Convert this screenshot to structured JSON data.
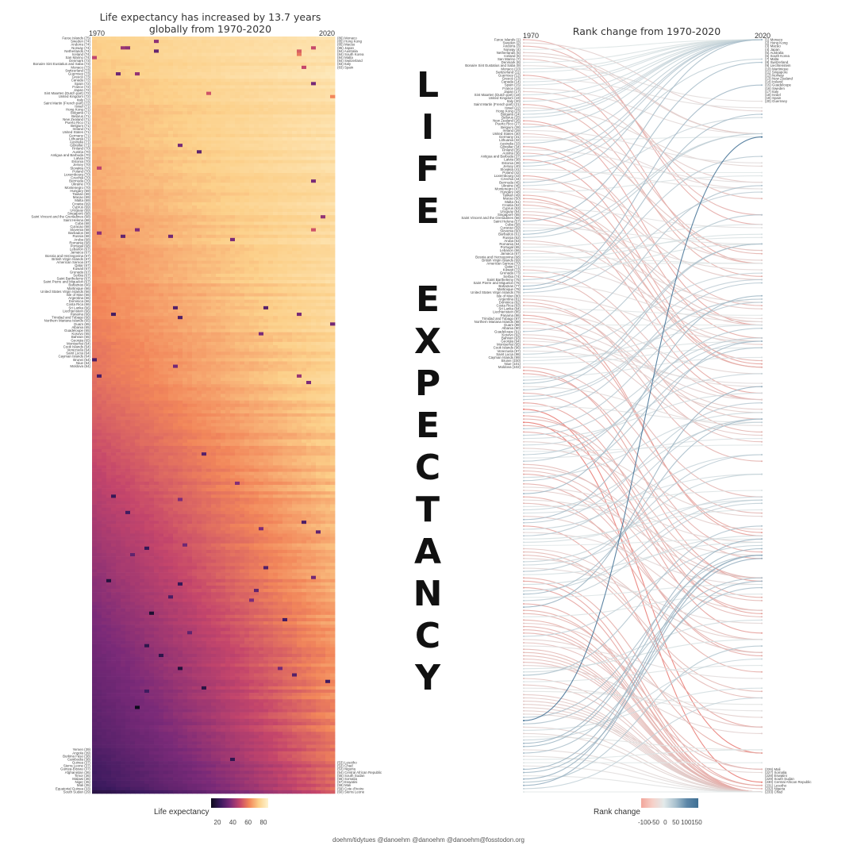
{
  "left_panel": {
    "title_line1": "Life expectancy has increased by 13.7 years",
    "title_line2": "globally from 1970-2020",
    "year_start": "1970",
    "year_end": "2020",
    "legend_title": "Life expectancy",
    "legend_ticks": [
      "20",
      "40",
      "60",
      "80"
    ]
  },
  "right_panel": {
    "title": "Rank change from 1970-2020",
    "year_start": "1970",
    "year_end": "2020",
    "legend_title": "Rank change",
    "legend_ticks": [
      "-100",
      "-50",
      "0",
      "50",
      "100",
      "150"
    ]
  },
  "center_word": {
    "word1": [
      "L",
      "I",
      "F",
      "E"
    ],
    "word2": [
      "E",
      "X",
      "P",
      "E",
      "C",
      "T",
      "A",
      "N",
      "C",
      "Y"
    ]
  },
  "footer": "doehm/tidytues  @danoehm  @danoehm  @danoehm@fosstodon.org",
  "colors": {
    "heat_low": "#1a0f2e",
    "heat_mid": "#c4456b",
    "heat_high": "#fde7b0",
    "rank_down": "#e8766e",
    "rank_neutral": "#dfe6e6",
    "rank_up": "#3f6f93"
  },
  "chart_data": [
    {
      "type": "heatmap",
      "title": "Life expectancy has increased by 13.7 years globally from 1970-2020",
      "x_range": [
        1970,
        2020
      ],
      "legend_title": "Life expectancy",
      "legend_range": [
        20,
        85
      ],
      "rows_1970": [
        {
          "name": "Faroe Islands",
          "value": 75
        },
        {
          "name": "Sweden",
          "value": 74
        },
        {
          "name": "Andorra",
          "value": 74
        },
        {
          "name": "Norway",
          "value": 74
        },
        {
          "name": "Netherlands",
          "value": 74
        },
        {
          "name": "Iceland",
          "value": 74
        },
        {
          "name": "San Marino",
          "value": 74
        },
        {
          "name": "Denmark",
          "value": 73
        },
        {
          "name": "Bonaire Sint Eustatius and Saba",
          "value": 73
        },
        {
          "name": "Monaco",
          "value": 73
        },
        {
          "name": "Switzerland",
          "value": 73
        },
        {
          "name": "Guernsey",
          "value": 73
        },
        {
          "name": "Greece",
          "value": 73
        },
        {
          "name": "Canada",
          "value": 72
        },
        {
          "name": "Spain",
          "value": 72
        },
        {
          "name": "France",
          "value": 72
        },
        {
          "name": "Japan",
          "value": 72
        },
        {
          "name": "Sint Maarten (Dutch part)",
          "value": 72
        },
        {
          "name": "United Kingdom",
          "value": 72
        },
        {
          "name": "Italy",
          "value": 72
        },
        {
          "name": "Saint Martin (French part)",
          "value": 72
        },
        {
          "name": "Israel",
          "value": 71
        },
        {
          "name": "Hong Kong",
          "value": 71
        },
        {
          "name": "Bulgaria",
          "value": 71
        },
        {
          "name": "Belarus",
          "value": 71
        },
        {
          "name": "New Zealand",
          "value": 71
        },
        {
          "name": "Puerto Rico",
          "value": 71
        },
        {
          "name": "Belgium",
          "value": 71
        },
        {
          "name": "Ireland",
          "value": 71
        },
        {
          "name": "United States",
          "value": 71
        },
        {
          "name": "Germany",
          "value": 71
        },
        {
          "name": "Lithuania",
          "value": 71
        },
        {
          "name": "Australia",
          "value": 71
        },
        {
          "name": "Gibraltar",
          "value": 71
        },
        {
          "name": "Finland",
          "value": 70
        },
        {
          "name": "Austria",
          "value": 70
        },
        {
          "name": "Antigua and Barbuda",
          "value": 70
        },
        {
          "name": "Latvia",
          "value": 70
        },
        {
          "name": "Estonia",
          "value": 70
        },
        {
          "name": "Jersey",
          "value": 70
        },
        {
          "name": "Slovakia",
          "value": 70
        },
        {
          "name": "Poland",
          "value": 70
        },
        {
          "name": "Luxembourg",
          "value": 70
        },
        {
          "name": "Czechia",
          "value": 70
        },
        {
          "name": "Bermuda",
          "value": 70
        },
        {
          "name": "Ukraine",
          "value": 70
        },
        {
          "name": "Montenegro",
          "value": 70
        },
        {
          "name": "Hungary",
          "value": 69
        },
        {
          "name": "Taiwan",
          "value": 69
        },
        {
          "name": "Macao",
          "value": 69
        },
        {
          "name": "Malta",
          "value": 69
        },
        {
          "name": "Croatia",
          "value": 69
        },
        {
          "name": "Cyprus",
          "value": 69
        },
        {
          "name": "Uruguay",
          "value": 69
        },
        {
          "name": "Singapore",
          "value": 68
        },
        {
          "name": "Saint Vincent and the Grenadines",
          "value": 68
        },
        {
          "name": "Saint Helena",
          "value": 68
        },
        {
          "name": "Cuba",
          "value": 68
        },
        {
          "name": "Curacao",
          "value": 68
        },
        {
          "name": "Slovenia",
          "value": 68
        },
        {
          "name": "Barbados",
          "value": 68
        },
        {
          "name": "Russia",
          "value": 68
        },
        {
          "name": "Aruba",
          "value": 68
        },
        {
          "name": "Romania",
          "value": 68
        },
        {
          "name": "Portugal",
          "value": 68
        },
        {
          "name": "Lebanon",
          "value": 67
        },
        {
          "name": "Jamaica",
          "value": 67
        },
        {
          "name": "Bosnia and Herzegovina",
          "value": 67
        },
        {
          "name": "British Virgin Islands",
          "value": 67
        },
        {
          "name": "American Samoa",
          "value": 67
        },
        {
          "name": "Qatar",
          "value": 67
        },
        {
          "name": "Kuwait",
          "value": 67
        },
        {
          "name": "Grenada",
          "value": 67
        },
        {
          "name": "Serbia",
          "value": 67
        },
        {
          "name": "Saint Barthelemy",
          "value": 67
        },
        {
          "name": "Saint Pierre and Miquelon",
          "value": 67
        },
        {
          "name": "Bahamas",
          "value": 66
        },
        {
          "name": "Martinique",
          "value": 66
        },
        {
          "name": "United States Virgin Islands",
          "value": 66
        },
        {
          "name": "Isle of Man",
          "value": 66
        },
        {
          "name": "Argentina",
          "value": 66
        },
        {
          "name": "Dominica",
          "value": 66
        },
        {
          "name": "Costa Rica",
          "value": 66
        },
        {
          "name": "Sri Lanka",
          "value": 66
        },
        {
          "name": "Liechtenstein",
          "value": 66
        },
        {
          "name": "Panama",
          "value": 66
        },
        {
          "name": "Trinidad and Tobago",
          "value": 66
        },
        {
          "name": "Northern Mariana Islands",
          "value": 65
        },
        {
          "name": "Guam",
          "value": 65
        },
        {
          "name": "Albania",
          "value": 65
        },
        {
          "name": "Guadeloupe",
          "value": 65
        },
        {
          "name": "Kosovo",
          "value": 65
        },
        {
          "name": "Bahrain",
          "value": 65
        },
        {
          "name": "Georgia",
          "value": 65
        },
        {
          "name": "Montserrat",
          "value": 64
        },
        {
          "name": "Cook Islands",
          "value": 64
        },
        {
          "name": "Venezuela",
          "value": 64
        },
        {
          "name": "Saint Lucia",
          "value": 64
        },
        {
          "name": "Cayman Islands",
          "value": 64
        },
        {
          "name": "Brunei",
          "value": 64
        },
        {
          "name": "Niue",
          "value": 64
        },
        {
          "name": "Moldova",
          "value": 64
        }
      ],
      "highest_rows_2020": [
        {
          "name": "Monaco",
          "value": 86
        },
        {
          "name": "Hong Kong",
          "value": 85
        },
        {
          "name": "Macao",
          "value": 85
        },
        {
          "name": "Japan",
          "value": 85
        },
        {
          "name": "Australia",
          "value": 84
        },
        {
          "name": "South Korea",
          "value": 84
        },
        {
          "name": "Malta",
          "value": 84
        },
        {
          "name": "Switzerland",
          "value": 84
        },
        {
          "name": "Italy",
          "value": 83
        },
        {
          "name": "Spain",
          "value": 83
        }
      ],
      "lowest_rows_2020": [
        {
          "name": "Lesotho",
          "value": 53
        },
        {
          "name": "Chad",
          "value": 53
        },
        {
          "name": "Nigeria",
          "value": 53
        },
        {
          "name": "Central African Republic",
          "value": 54
        },
        {
          "name": "South Sudan",
          "value": 55
        },
        {
          "name": "Somalia",
          "value": 56
        },
        {
          "name": "Eswatini",
          "value": 57
        },
        {
          "name": "Mali",
          "value": 59
        },
        {
          "name": "Cote d'Ivoire",
          "value": 59
        },
        {
          "name": "Sierra Leone",
          "value": 60
        }
      ],
      "lowest_rows_1970": [
        {
          "name": "Yemen",
          "value": 39
        },
        {
          "name": "Angola",
          "value": 39
        },
        {
          "name": "Burkina Faso",
          "value": 38
        },
        {
          "name": "Cambodia",
          "value": 38
        },
        {
          "name": "Guinea",
          "value": 37
        },
        {
          "name": "Sierra Leone",
          "value": 37
        },
        {
          "name": "Guinea-Bissau",
          "value": 37
        },
        {
          "name": "Afghanistan",
          "value": 36
        },
        {
          "name": "Timor",
          "value": 36
        },
        {
          "name": "Malawi",
          "value": 36
        },
        {
          "name": "Niger",
          "value": 35
        },
        {
          "name": "Mali",
          "value": 35
        },
        {
          "name": "Equatorial Guinea",
          "value": 33
        },
        {
          "name": "South Sudan",
          "value": 29
        }
      ]
    },
    {
      "type": "line",
      "title": "Rank change from 1970-2020",
      "x": [
        "1970",
        "2020"
      ],
      "legend_title": "Rank change",
      "legend_range": [
        -100,
        150
      ],
      "top_ranks_2020": [
        {
          "rank": 1,
          "name": "Monaco"
        },
        {
          "rank": 2,
          "name": "Hong Kong"
        },
        {
          "rank": 3,
          "name": "Macao"
        },
        {
          "rank": 4,
          "name": "Japan"
        },
        {
          "rank": 5,
          "name": "Australia"
        },
        {
          "rank": 6,
          "name": "South Korea"
        },
        {
          "rank": 7,
          "name": "Malta"
        },
        {
          "rank": 8,
          "name": "Switzerland"
        },
        {
          "rank": 9,
          "name": "Liechtenstein"
        },
        {
          "rank": 10,
          "name": "Martinique"
        },
        {
          "rank": 11,
          "name": "Singapore"
        },
        {
          "rank": 12,
          "name": "Norway"
        },
        {
          "rank": 13,
          "name": "New Zealand"
        },
        {
          "rank": 14,
          "name": "Ireland"
        },
        {
          "rank": 15,
          "name": "Guadeloupe"
        },
        {
          "rank": 16,
          "name": "Sweden"
        },
        {
          "rank": 17,
          "name": "Italy"
        },
        {
          "rank": 18,
          "name": "Israel"
        },
        {
          "rank": 19,
          "name": "Spain"
        },
        {
          "rank": 20,
          "name": "Guernsey"
        }
      ],
      "bottom_ranks_2020": [
        {
          "rank": 226,
          "name": "Mali"
        },
        {
          "rank": 227,
          "name": "Somalia"
        },
        {
          "rank": 228,
          "name": "Eswatini"
        },
        {
          "rank": 229,
          "name": "South Sudan"
        },
        {
          "rank": 230,
          "name": "Central African Republic"
        },
        {
          "rank": 231,
          "name": "Lesotho"
        },
        {
          "rank": 232,
          "name": "Nigeria"
        },
        {
          "rank": 233,
          "name": "Chad"
        }
      ]
    }
  ]
}
